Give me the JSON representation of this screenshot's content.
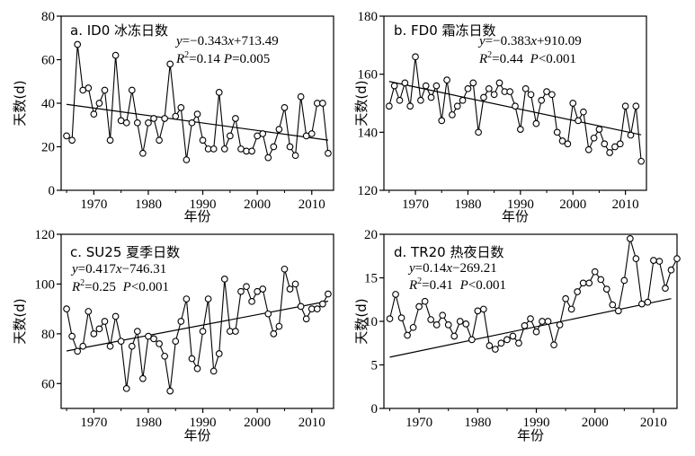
{
  "chart_data": [
    {
      "type": "line",
      "title": "a. ID0 冰冻日数",
      "ylabel": "天数(d)",
      "xlabel": "年份",
      "xlim": [
        1964,
        2014
      ],
      "ylim": [
        0,
        80
      ],
      "xticks": [
        1970,
        1980,
        1990,
        2000,
        2010
      ],
      "yticks": [
        0,
        20,
        40,
        60,
        80
      ],
      "x": [
        1965,
        1966,
        1967,
        1968,
        1969,
        1970,
        1971,
        1972,
        1973,
        1974,
        1975,
        1976,
        1977,
        1978,
        1979,
        1980,
        1981,
        1982,
        1983,
        1984,
        1985,
        1986,
        1987,
        1988,
        1989,
        1990,
        1991,
        1992,
        1993,
        1994,
        1995,
        1996,
        1997,
        1998,
        1999,
        2000,
        2001,
        2002,
        2003,
        2004,
        2005,
        2006,
        2007,
        2008,
        2009,
        2010,
        2011,
        2012,
        2013
      ],
      "values": [
        25,
        23,
        67,
        46,
        47,
        35,
        40,
        46,
        23,
        62,
        32,
        31,
        46,
        31,
        17,
        31,
        33,
        23,
        33,
        58,
        34,
        38,
        14,
        31,
        35,
        23,
        19,
        19,
        45,
        19,
        25,
        33,
        19,
        18,
        18,
        25,
        26,
        15,
        20,
        28,
        38,
        20,
        16,
        43,
        25,
        26,
        40,
        40,
        17
      ],
      "trend": {
        "slope": -0.343,
        "intercept": 713.49
      },
      "equation": {
        "y": "y",
        "eq": "=−0.343",
        "x": "x",
        "rest": "+713.49"
      },
      "stats": {
        "r": "R",
        "sup": "2",
        "r2": "=0.14",
        "p": "P",
        "pval": "=0.005"
      }
    },
    {
      "type": "line",
      "title": "b. FD0 霜冻日数",
      "ylabel": "天数(d)",
      "xlabel": "年份",
      "xlim": [
        1964,
        2014
      ],
      "ylim": [
        120,
        180
      ],
      "xticks": [
        1970,
        1980,
        1990,
        2000,
        2010
      ],
      "yticks": [
        120,
        140,
        160,
        180
      ],
      "x": [
        1965,
        1966,
        1967,
        1968,
        1969,
        1970,
        1971,
        1972,
        1973,
        1974,
        1975,
        1976,
        1977,
        1978,
        1979,
        1980,
        1981,
        1982,
        1983,
        1984,
        1985,
        1986,
        1987,
        1988,
        1989,
        1990,
        1991,
        1992,
        1993,
        1994,
        1995,
        1996,
        1997,
        1998,
        1999,
        2000,
        2001,
        2002,
        2003,
        2004,
        2005,
        2006,
        2007,
        2008,
        2009,
        2010,
        2011,
        2012,
        2013
      ],
      "values": [
        149,
        156,
        151,
        157,
        149,
        166,
        151,
        156,
        152,
        156,
        144,
        158,
        146,
        149,
        151,
        155,
        157,
        140,
        152,
        155,
        153,
        157,
        154,
        154,
        149,
        141,
        155,
        153,
        143,
        151,
        154,
        153,
        140,
        137,
        136,
        150,
        144,
        147,
        134,
        138,
        141,
        136,
        133,
        135,
        136,
        149,
        139,
        149,
        130
      ],
      "trend": {
        "slope": -0.383,
        "intercept": 910.09
      },
      "equation": {
        "y": "y",
        "eq": "=−0.383",
        "x": "x",
        "rest": "+910.09"
      },
      "stats": {
        "r": "R",
        "sup": "2",
        "r2": "=0.44 ",
        "p": "P",
        "pval": "<0.001"
      }
    },
    {
      "type": "line",
      "title": "c. SU25 夏季日数",
      "ylabel": "天数(d)",
      "xlabel": "年份",
      "xlim": [
        1964,
        2014
      ],
      "ylim": [
        50,
        120
      ],
      "xticks": [
        1970,
        1980,
        1990,
        2000,
        2010
      ],
      "yticks": [
        60,
        80,
        100,
        120
      ],
      "x": [
        1965,
        1966,
        1967,
        1968,
        1969,
        1970,
        1971,
        1972,
        1973,
        1974,
        1975,
        1976,
        1977,
        1978,
        1979,
        1980,
        1981,
        1982,
        1983,
        1984,
        1985,
        1986,
        1987,
        1988,
        1989,
        1990,
        1991,
        1992,
        1993,
        1994,
        1995,
        1996,
        1997,
        1998,
        1999,
        2000,
        2001,
        2002,
        2003,
        2004,
        2005,
        2006,
        2007,
        2008,
        2009,
        2010,
        2011,
        2012,
        2013
      ],
      "values": [
        90,
        79,
        73,
        75,
        89,
        80,
        82,
        85,
        75,
        87,
        77,
        58,
        75,
        81,
        62,
        79,
        78,
        76,
        71,
        57,
        77,
        85,
        94,
        70,
        66,
        81,
        94,
        65,
        72,
        102,
        81,
        81,
        97,
        99,
        93,
        97,
        98,
        88,
        80,
        83,
        106,
        98,
        100,
        91,
        86,
        90,
        90,
        92,
        96
      ],
      "trend": {
        "slope": 0.417,
        "intercept": -746.31
      },
      "equation": {
        "y": "y",
        "eq": "=0.417",
        "x": "x",
        "rest": "−746.31"
      },
      "stats": {
        "r": "R",
        "sup": "2",
        "r2": "=0.25  ",
        "p": "P",
        "pval": "<0.001"
      }
    },
    {
      "type": "line",
      "title": "d. TR20 热夜日数",
      "ylabel": "天数(d)",
      "xlabel": "年份",
      "xlim": [
        1964,
        2014
      ],
      "ylim": [
        0,
        20
      ],
      "xticks": [
        1970,
        1980,
        1990,
        2000,
        2010
      ],
      "yticks": [
        0,
        5,
        10,
        15,
        20
      ],
      "x": [
        1965,
        1966,
        1967,
        1968,
        1969,
        1970,
        1971,
        1972,
        1973,
        1974,
        1975,
        1976,
        1977,
        1978,
        1979,
        1980,
        1981,
        1982,
        1983,
        1984,
        1985,
        1986,
        1987,
        1988,
        1989,
        1990,
        1991,
        1992,
        1993,
        1994,
        1995,
        1996,
        1997,
        1998,
        1999,
        2000,
        2001,
        2002,
        2003,
        2004,
        2005,
        2006,
        2007,
        2008,
        2009,
        2010,
        2011,
        2012,
        2013
      ],
      "values": [
        10.3,
        13.1,
        10.4,
        8.4,
        9.3,
        11.7,
        12.3,
        10.2,
        9.6,
        10.7,
        9.6,
        8.3,
        10.0,
        9.7,
        7.9,
        11.2,
        11.4,
        7.2,
        6.8,
        7.5,
        7.9,
        8.3,
        7.5,
        9.5,
        10.3,
        8.8,
        10.0,
        10.0,
        7.3,
        9.6,
        12.6,
        11.4,
        13.4,
        14.4,
        14.4,
        15.7,
        14.8,
        13.7,
        11.9,
        11.2,
        14.7,
        19.5,
        17.2,
        12.0,
        12.2,
        17.0,
        16.9,
        13.8,
        15.9
      ],
      "extra_point": {
        "x": 2014,
        "y": 17.2
      },
      "trend": {
        "slope": 0.14,
        "intercept": -269.21
      },
      "equation": {
        "y": "y",
        "eq": "=0.14",
        "x": "x",
        "rest": "−269.21"
      },
      "stats": {
        "r": "R",
        "sup": "2",
        "r2": "=0.41 ",
        "p": "P",
        "pval": "<0.001"
      }
    }
  ]
}
